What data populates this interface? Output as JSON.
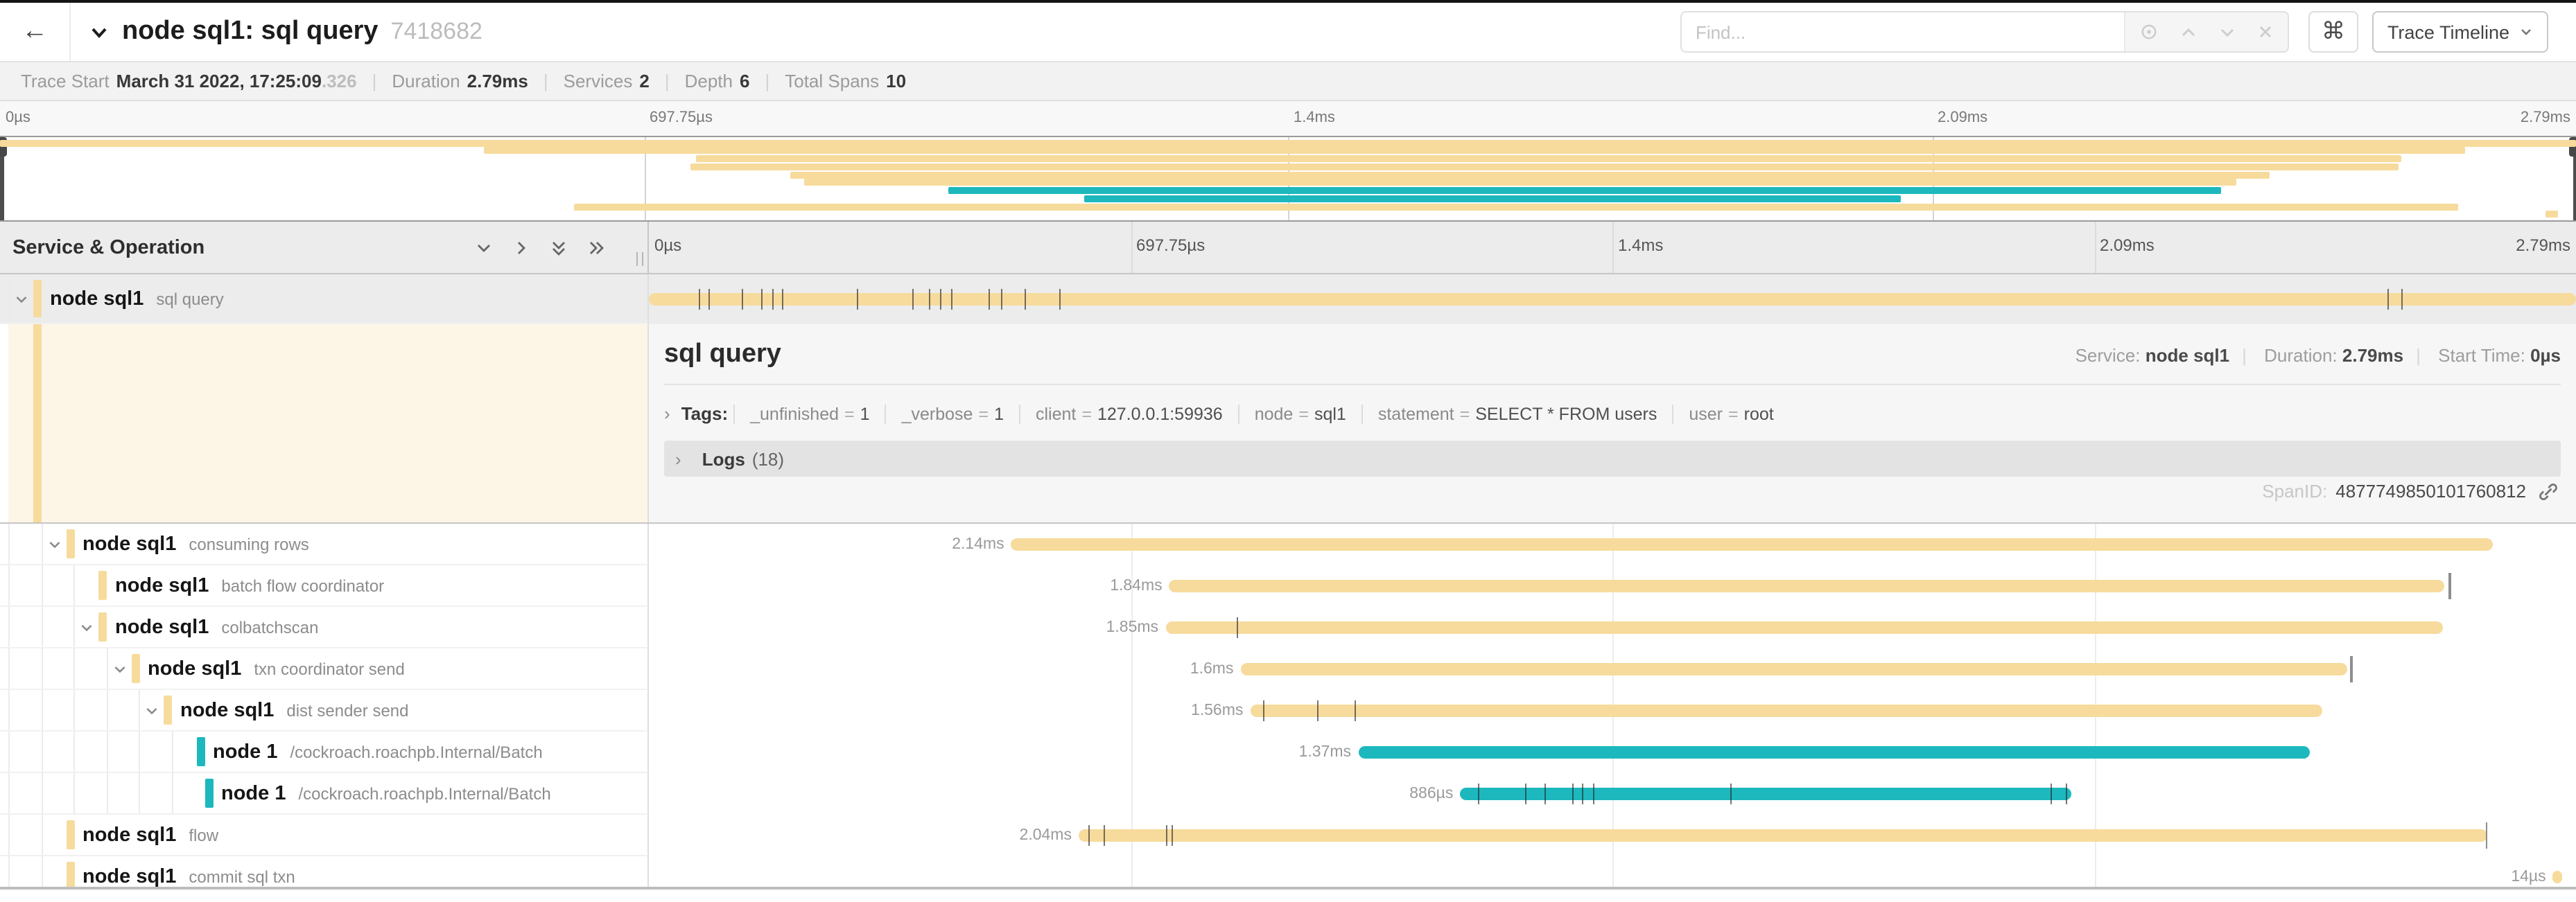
{
  "header": {
    "title": "node sql1: sql query",
    "trace_id_short": "7418682",
    "find_placeholder": "Find...",
    "view_button_label": "Trace Timeline"
  },
  "trace_meta": {
    "items": [
      {
        "label": "Trace Start",
        "value": "March 31 2022, 17:25:09",
        "suffix": ".326"
      },
      {
        "label": "Duration",
        "value": "2.79ms"
      },
      {
        "label": "Services",
        "value": "2"
      },
      {
        "label": "Depth",
        "value": "6"
      },
      {
        "label": "Total Spans",
        "value": "10"
      }
    ]
  },
  "axis_ticks": [
    "0µs",
    "697.75µs",
    "1.4ms",
    "2.09ms",
    "2.79ms"
  ],
  "left_header": {
    "title": "Service & Operation"
  },
  "colors": {
    "tan": "#F7DB9C",
    "teal": "#1CB8BE",
    "selected_row_bg": "#ececec",
    "detail_cream_bg": "#fdf6e6"
  },
  "detail": {
    "title": "sql query",
    "service_label": "Service:",
    "service": "node sql1",
    "duration_label": "Duration:",
    "duration": "2.79ms",
    "start_time_label": "Start Time:",
    "start_time": "0µs",
    "tags_label": "Tags:",
    "tags": [
      {
        "key": "_unfinished",
        "value": "1"
      },
      {
        "key": "_verbose",
        "value": "1"
      },
      {
        "key": "client",
        "value": "127.0.0.1:59936"
      },
      {
        "key": "node",
        "value": "sql1"
      },
      {
        "key": "statement",
        "value": "SELECT * FROM users"
      },
      {
        "key": "user",
        "value": "root"
      }
    ],
    "logs_label": "Logs",
    "logs_count": "(18)",
    "span_id_label": "SpanID:",
    "span_id": "4877749850101760812"
  },
  "spans": [
    {
      "service": "node sql1",
      "operation": "sql query",
      "depth": 0,
      "color": "tan",
      "start": 0.0,
      "end": 1.0,
      "duration": "2.79ms",
      "show_duration_label": false,
      "has_children": true,
      "selected": true,
      "ticks": [
        0.026,
        0.031,
        0.048,
        0.058,
        0.064,
        0.069,
        0.108,
        0.137,
        0.145,
        0.151,
        0.157,
        0.176,
        0.183,
        0.195,
        0.213,
        0.902,
        0.909
      ],
      "end_ticks": []
    },
    {
      "service": "node sql1",
      "operation": "consuming rows",
      "depth": 1,
      "color": "tan",
      "start": 0.188,
      "end": 0.957,
      "duration": "2.14ms",
      "show_duration_label": true,
      "has_children": true,
      "selected": false,
      "ticks": [],
      "end_ticks": []
    },
    {
      "service": "node sql1",
      "operation": "batch flow coordinator",
      "depth": 2,
      "color": "tan",
      "start": 0.27,
      "end": 0.932,
      "duration": "1.84ms",
      "show_duration_label": true,
      "has_children": false,
      "selected": false,
      "ticks": [],
      "end_ticks": [
        0.934
      ]
    },
    {
      "service": "node sql1",
      "operation": "colbatchscan",
      "depth": 2,
      "color": "tan",
      "start": 0.268,
      "end": 0.931,
      "duration": "1.85ms",
      "show_duration_label": true,
      "has_children": true,
      "selected": false,
      "ticks": [
        0.305
      ],
      "end_ticks": []
    },
    {
      "service": "node sql1",
      "operation": "txn coordinator send",
      "depth": 3,
      "color": "tan",
      "start": 0.307,
      "end": 0.881,
      "duration": "1.6ms",
      "show_duration_label": true,
      "has_children": true,
      "selected": false,
      "ticks": [],
      "end_ticks": [
        0.883
      ]
    },
    {
      "service": "node sql1",
      "operation": "dist sender send",
      "depth": 4,
      "color": "tan",
      "start": 0.312,
      "end": 0.868,
      "duration": "1.56ms",
      "show_duration_label": true,
      "has_children": true,
      "selected": false,
      "ticks": [
        0.319,
        0.347,
        0.366
      ],
      "end_ticks": []
    },
    {
      "service": "node 1",
      "operation": "/cockroach.roachpb.Internal/Batch",
      "depth": 5,
      "color": "teal",
      "start": 0.368,
      "end": 0.862,
      "duration": "1.37ms",
      "show_duration_label": true,
      "has_children": false,
      "selected": false,
      "ticks": [],
      "end_ticks": []
    },
    {
      "service": "node 1",
      "operation": "/cockroach.roachpb.Internal/Batch",
      "depth": 5,
      "extra_indent": 6,
      "color": "teal",
      "start": 0.421,
      "end": 0.738,
      "duration": "886µs",
      "show_duration_label": true,
      "has_children": false,
      "selected": false,
      "ticks": [
        0.43,
        0.455,
        0.465,
        0.479,
        0.484,
        0.49,
        0.561,
        0.727,
        0.735
      ],
      "end_ticks": []
    },
    {
      "service": "node sql1",
      "operation": "flow",
      "depth": 1,
      "color": "tan",
      "start": 0.223,
      "end": 0.954,
      "duration": "2.04ms",
      "show_duration_label": true,
      "has_children": false,
      "selected": false,
      "ticks": [
        0.228,
        0.236,
        0.268,
        0.271
      ],
      "end_ticks": [
        0.953
      ]
    },
    {
      "service": "node sql1",
      "operation": "commit sql txn",
      "depth": 1,
      "color": "tan",
      "start": 0.988,
      "end": 0.993,
      "duration": "14µs",
      "show_duration_label": true,
      "has_children": false,
      "selected": false,
      "ticks": [],
      "end_ticks": []
    }
  ]
}
